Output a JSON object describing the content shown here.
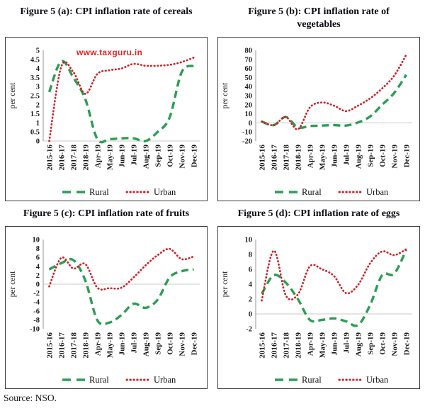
{
  "page": {
    "watermark": "www.taxguru.in",
    "source_note": "Source: NSO."
  },
  "colors": {
    "rural": "#2b9e53",
    "urban": "#cf2128",
    "axis_line": "#a6a6a6",
    "zero_line": "#c9c9c9",
    "watermark": "#e32424",
    "text": "#1a1a1a"
  },
  "legend": {
    "rural_label": "Rural",
    "urban_label": "Urban",
    "position": "bottom"
  },
  "chart_data": [
    {
      "id": "cereals",
      "type": "line",
      "title": "Figure 5 (a): CPI inflation rate of cereals",
      "ylabel": "per cent",
      "ylim": [
        0,
        5
      ],
      "ytick_step": 0.5,
      "grid": false,
      "categories": [
        "2015-16",
        "2016-17",
        "2017-18",
        "2018-19",
        "Apr-19",
        "May-19",
        "Jun-19",
        "Jul-19",
        "Aug-19",
        "Sep-19",
        "Oct-19",
        "Nov-19",
        "Dec-19"
      ],
      "series": [
        {
          "name": "Rural",
          "style": "dashed",
          "values": [
            2.7,
            4.4,
            3.5,
            2.3,
            0.1,
            0.1,
            0.15,
            0.15,
            0.0,
            0.5,
            1.3,
            3.8,
            4.15
          ]
        },
        {
          "name": "Urban",
          "style": "dotted",
          "values": [
            0.0,
            4.1,
            3.8,
            2.6,
            3.7,
            3.9,
            4.0,
            4.25,
            4.15,
            4.15,
            4.2,
            4.35,
            4.6
          ]
        }
      ]
    },
    {
      "id": "vegetables",
      "type": "line",
      "title": "Figure 5 (b): CPI inflation rate of vegetables",
      "ylabel": "per cent",
      "ylim": [
        -20,
        80
      ],
      "ytick_step": 10,
      "grid": false,
      "categories": [
        "2015-16",
        "2016-17",
        "2017-18",
        "2018-19",
        "Apr-19",
        "May-19",
        "Jun-19",
        "Jul-19",
        "Aug-19",
        "Sep-19",
        "Oct-19",
        "Nov-19",
        "Dec-19"
      ],
      "series": [
        {
          "name": "Rural",
          "style": "dashed",
          "values": [
            1.5,
            -2.5,
            6.5,
            -5,
            -3.5,
            -3,
            -2.5,
            -3,
            0.5,
            7,
            20,
            33,
            53
          ]
        },
        {
          "name": "Urban",
          "style": "dotted",
          "values": [
            1.5,
            -2.5,
            6.5,
            -7,
            17,
            22.5,
            19,
            13,
            19,
            27,
            38,
            52,
            75
          ]
        }
      ]
    },
    {
      "id": "fruits",
      "type": "line",
      "title": "Figure 5 (c): CPI inflation rate of fruits",
      "ylabel": "per cent",
      "ylim": [
        -10,
        10
      ],
      "ytick_step": 2,
      "grid": false,
      "categories": [
        "2015-16",
        "2016-17",
        "2017-18",
        "2018-19",
        "Apr-19",
        "May-19",
        "Jun-19",
        "Jul-19",
        "Aug-19",
        "Sep-19",
        "Oct-19",
        "Nov-19",
        "Dec-19"
      ],
      "series": [
        {
          "name": "Rural",
          "style": "dashed",
          "values": [
            3.3,
            4.7,
            5.4,
            0.8,
            -8.1,
            -8.6,
            -6.9,
            -4.4,
            -5.3,
            -3.5,
            1.5,
            2.9,
            3.3
          ]
        },
        {
          "name": "Urban",
          "style": "dotted",
          "values": [
            -0.5,
            5.9,
            3.5,
            4.5,
            -0.8,
            -0.9,
            -0.8,
            1.5,
            4.2,
            6.5,
            7.9,
            5.6,
            6.2
          ]
        }
      ]
    },
    {
      "id": "eggs",
      "type": "line",
      "title": "Figure 5 (d): CPI inflation rate of eggs",
      "ylabel": "per cent",
      "ylim": [
        -2,
        10
      ],
      "ytick_step": 2,
      "grid": false,
      "categories": [
        "2015-16",
        "2016-17",
        "2017-18",
        "2018-19",
        "Apr-19",
        "May-19",
        "Jun-19",
        "Jul-19",
        "Aug-19",
        "Sep-19",
        "Oct-19",
        "Nov-19",
        "Dec-19"
      ],
      "series": [
        {
          "name": "Rural",
          "style": "dashed",
          "values": [
            2.7,
            5.2,
            4.2,
            2.0,
            -0.8,
            -0.8,
            -0.6,
            -1.0,
            -1.5,
            1.2,
            5.2,
            5.4,
            8.6
          ]
        },
        {
          "name": "Urban",
          "style": "dotted",
          "values": [
            1.8,
            8.5,
            2.5,
            2.6,
            6.4,
            6.0,
            5.1,
            2.8,
            3.9,
            6.8,
            8.4,
            7.9,
            8.7
          ]
        }
      ]
    }
  ]
}
